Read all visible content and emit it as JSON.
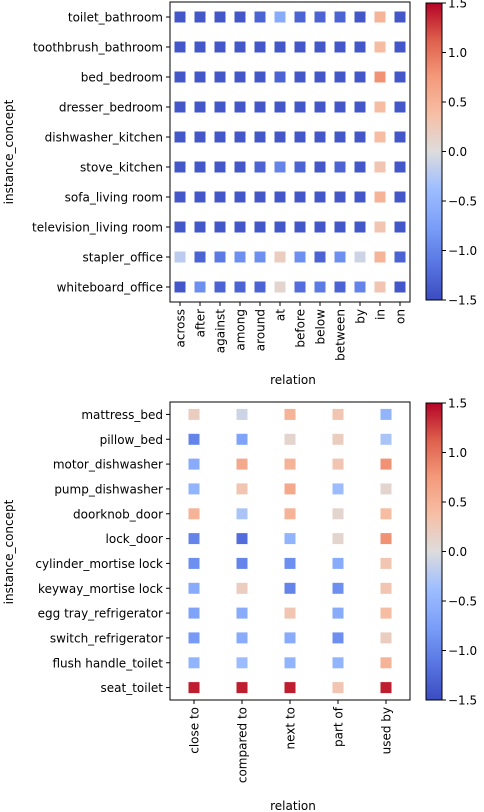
{
  "chart_data": [
    {
      "type": "heatmap",
      "xlabel": "relation",
      "ylabel": "instance_concept",
      "rows": [
        "toilet_bathroom",
        "toothbrush_bathroom",
        "bed_bedroom",
        "dresser_bedroom",
        "dishwasher_kitchen",
        "stove_kitchen",
        "sofa_living room",
        "television_living room",
        "stapler_office",
        "whiteboard_office"
      ],
      "columns": [
        "across",
        "after",
        "against",
        "among",
        "around",
        "at",
        "before",
        "below",
        "between",
        "by",
        "in",
        "on"
      ],
      "values": [
        [
          -1.4,
          -1.4,
          -1.4,
          -1.4,
          -1.3,
          -0.6,
          -1.3,
          -1.3,
          -1.3,
          -1.4,
          0.5,
          -1.4
        ],
        [
          -1.4,
          -1.4,
          -1.4,
          -1.4,
          -1.4,
          -1.4,
          -1.4,
          -1.4,
          -1.4,
          -1.4,
          0.4,
          -1.4
        ],
        [
          -1.4,
          -1.4,
          -1.4,
          -1.4,
          -1.4,
          -1.3,
          -1.4,
          -1.4,
          -1.4,
          -1.4,
          0.8,
          -1.4
        ],
        [
          -1.4,
          -1.4,
          -1.4,
          -1.4,
          -1.4,
          -1.4,
          -1.4,
          -1.4,
          -1.4,
          -1.4,
          0.4,
          -1.4
        ],
        [
          -1.4,
          -1.4,
          -1.4,
          -1.4,
          -1.4,
          -1.4,
          -1.4,
          -1.4,
          -1.4,
          -1.4,
          0.4,
          -1.4
        ],
        [
          -1.4,
          -1.4,
          -1.4,
          -1.4,
          -1.3,
          -1.0,
          -1.3,
          -1.4,
          -1.3,
          -1.4,
          0.3,
          -1.4
        ],
        [
          -1.4,
          -1.4,
          -1.4,
          -1.4,
          -1.4,
          -1.4,
          -1.4,
          -1.4,
          -1.4,
          -1.4,
          0.5,
          -1.4
        ],
        [
          -1.4,
          -1.4,
          -1.4,
          -1.4,
          -1.4,
          -1.4,
          -1.4,
          -1.4,
          -1.4,
          -1.4,
          0.3,
          -1.4
        ],
        [
          -0.2,
          -1.3,
          -1.1,
          -0.9,
          -0.9,
          0.2,
          -0.9,
          -1.3,
          -0.9,
          -0.1,
          0.5,
          -1.3
        ],
        [
          -1.4,
          -0.9,
          -1.3,
          -1.3,
          -1.3,
          0.1,
          -1.2,
          -1.1,
          -1.3,
          -1.0,
          0.3,
          -1.4
        ]
      ],
      "vmin": -1.5,
      "vmax": 1.5,
      "colorbar_ticks": [
        1.5,
        1.0,
        0.5,
        0.0,
        -0.5,
        -1.0,
        -1.5
      ],
      "colorbar_tick_labels": [
        "1.5",
        "1.0",
        "0.5",
        "0.0",
        "−0.5",
        "−1.0",
        "−1.5"
      ],
      "colormap": "coolwarm"
    },
    {
      "type": "heatmap",
      "xlabel": "relation",
      "ylabel": "instance_concept",
      "rows": [
        "mattress_bed",
        "pillow_bed",
        "motor_dishwasher",
        "pump_dishwasher",
        "doorknob_door",
        "lock_door",
        "cylinder_mortise lock",
        "keyway_mortise lock",
        "egg tray_refrigerator",
        "switch_refrigerator",
        "flush handle_toilet",
        "seat_toilet"
      ],
      "columns": [
        "close to",
        "compared to",
        "next to",
        "part of",
        "used by"
      ],
      "values": [
        [
          0.2,
          -0.1,
          0.5,
          0.3,
          -0.5
        ],
        [
          -1.0,
          -0.7,
          0.1,
          0.2,
          -0.3
        ],
        [
          -0.6,
          0.6,
          0.5,
          0.3,
          0.8
        ],
        [
          -0.5,
          0.3,
          0.6,
          -0.4,
          0.1
        ],
        [
          0.5,
          -0.3,
          0.5,
          0.1,
          0.4
        ],
        [
          -1.0,
          -1.2,
          -0.5,
          0.1,
          0.8
        ],
        [
          -0.9,
          -1.0,
          -0.9,
          -0.6,
          0.3
        ],
        [
          -0.6,
          0.2,
          -1.0,
          -0.9,
          0.3
        ],
        [
          -0.7,
          -0.6,
          0.3,
          -0.6,
          0.4
        ],
        [
          -0.8,
          -0.6,
          -0.6,
          -0.9,
          0.2
        ],
        [
          -0.5,
          -0.4,
          -0.5,
          -0.5,
          0.5
        ],
        [
          1.4,
          1.4,
          1.4,
          0.3,
          1.4
        ]
      ],
      "vmin": -1.5,
      "vmax": 1.5,
      "colorbar_ticks": [
        1.5,
        1.0,
        0.5,
        0.0,
        -0.5,
        -1.0,
        -1.5
      ],
      "colorbar_tick_labels": [
        "1.5",
        "1.0",
        "0.5",
        "0.0",
        "−0.5",
        "−1.0",
        "−1.5"
      ],
      "colormap": "coolwarm"
    }
  ]
}
